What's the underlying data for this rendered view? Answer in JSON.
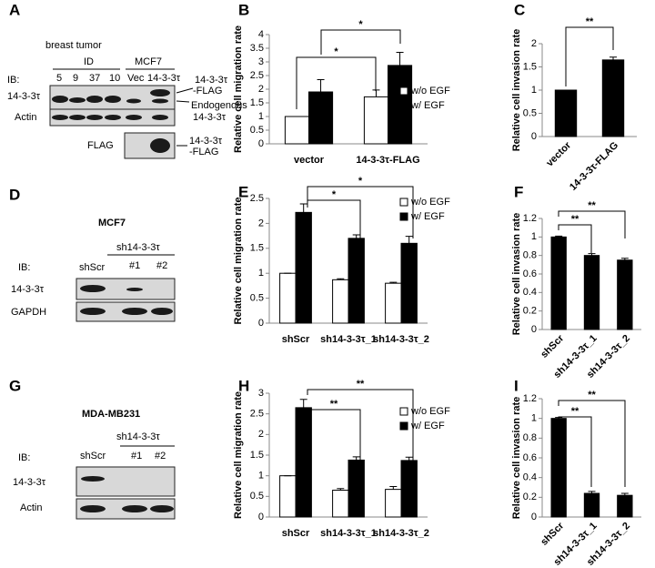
{
  "panel_labels": [
    "A",
    "B",
    "C",
    "D",
    "E",
    "F",
    "G",
    "H",
    "I"
  ],
  "blots": [
    {
      "group_labels": [
        "breast tumor",
        "ID",
        "MCF7"
      ],
      "ib": "IB:",
      "lanes": [
        "5",
        "9",
        "37",
        "10",
        "Vec",
        "14-3-3τ"
      ],
      "rows": [
        "14-3-3τ",
        "Actin",
        "FLAG"
      ],
      "annotations": [
        "14-3-3τ",
        "-FLAG",
        "Endogenous",
        "14-3-3τ",
        "14-3-3τ",
        "-FLAG"
      ]
    },
    {
      "title": "MCF7",
      "group_label": "sh14-3-3τ",
      "ib": "IB:",
      "lanes": [
        "shScr",
        "#1",
        "#2"
      ],
      "rows": [
        "14-3-3τ",
        "GAPDH"
      ]
    },
    {
      "title": "MDA-MB231",
      "group_label": "sh14-3-3τ",
      "ib": "IB:",
      "lanes": [
        "shScr",
        "#1",
        "#2"
      ],
      "rows": [
        "14-3-3τ",
        "Actin"
      ]
    }
  ],
  "chart_data": [
    {
      "type": "bar",
      "ylabel": "Relative cell migration rate",
      "categories": [
        "vector",
        "14-3-3τ-FLAG"
      ],
      "series": [
        {
          "name": "w/o EGF",
          "color": "#ffffff",
          "values": [
            1,
            1.72
          ],
          "errors": [
            0,
            0.25
          ]
        },
        {
          "name": "w/ EGF",
          "color": "#000000",
          "values": [
            1.9,
            2.87
          ],
          "errors": [
            0.45,
            0.48
          ]
        }
      ],
      "ylim": [
        0,
        4
      ],
      "yticks": [
        0,
        0.5,
        1,
        1.5,
        2,
        2.5,
        3,
        3.5,
        4
      ],
      "legend": "right",
      "annotations": [
        "*",
        "*"
      ]
    },
    {
      "type": "bar",
      "ylabel": "Relative cell invasion rate",
      "categories": [
        "vector",
        "14-3-3τ-FLAG"
      ],
      "color": "#000000",
      "values": [
        1,
        1.65
      ],
      "errors": [
        0,
        0.06
      ],
      "ylim": [
        0,
        2
      ],
      "yticks": [
        0,
        0.5,
        1,
        1.5,
        2
      ],
      "annotations": [
        "**"
      ]
    },
    {
      "type": "bar",
      "ylabel": "Relative cell migration rate",
      "categories": [
        "shScr",
        "sh14-3-3τ_1",
        "sh14-3-3τ_2"
      ],
      "series": [
        {
          "name": "w/o EGF",
          "color": "#ffffff",
          "values": [
            1,
            0.87,
            0.8
          ],
          "errors": [
            0,
            0.02,
            0.02
          ]
        },
        {
          "name": "w/ EGF",
          "color": "#000000",
          "values": [
            2.22,
            1.7,
            1.6
          ],
          "errors": [
            0.17,
            0.07,
            0.14
          ]
        }
      ],
      "ylim": [
        0,
        2.5
      ],
      "yticks": [
        0,
        0.5,
        1,
        1.5,
        2,
        2.5
      ],
      "legend": "right",
      "annotations": [
        "*",
        "*"
      ]
    },
    {
      "type": "bar",
      "ylabel": "Relative cell invasion rate",
      "categories": [
        "shScr",
        "sh14-3-3τ_1",
        "sh14-3-3τ_2"
      ],
      "color": "#000000",
      "values": [
        1,
        0.8,
        0.75
      ],
      "errors": [
        0.01,
        0.02,
        0.02
      ],
      "ylim": [
        0,
        1.2
      ],
      "yticks": [
        0,
        0.2,
        0.4,
        0.6,
        0.8,
        1,
        1.2
      ],
      "annotations": [
        "**",
        "**"
      ]
    },
    {
      "type": "bar",
      "ylabel": "Relative cell migration rate",
      "categories": [
        "shScr",
        "sh14-3-3τ_1",
        "sh14-3-3τ_2"
      ],
      "series": [
        {
          "name": "w/o EGF",
          "color": "#ffffff",
          "values": [
            1,
            0.65,
            0.67
          ],
          "errors": [
            0,
            0.04,
            0.07
          ]
        },
        {
          "name": "w/ EGF",
          "color": "#000000",
          "values": [
            2.65,
            1.38,
            1.37
          ],
          "errors": [
            0.2,
            0.08,
            0.08
          ]
        }
      ],
      "ylim": [
        0,
        3
      ],
      "yticks": [
        0,
        0.5,
        1,
        1.5,
        2,
        2.5,
        3
      ],
      "legend": "right",
      "annotations": [
        "**",
        "**"
      ]
    },
    {
      "type": "bar",
      "ylabel": "Relative cell invasion rate",
      "categories": [
        "shScr",
        "sh14-3-3τ_1",
        "sh14-3-3τ_2"
      ],
      "color": "#000000",
      "values": [
        1,
        0.24,
        0.22
      ],
      "errors": [
        0.01,
        0.02,
        0.02
      ],
      "ylim": [
        0,
        1.2
      ],
      "yticks": [
        0,
        0.2,
        0.4,
        0.6,
        0.8,
        1,
        1.2
      ],
      "annotations": [
        "**",
        "**"
      ]
    }
  ]
}
